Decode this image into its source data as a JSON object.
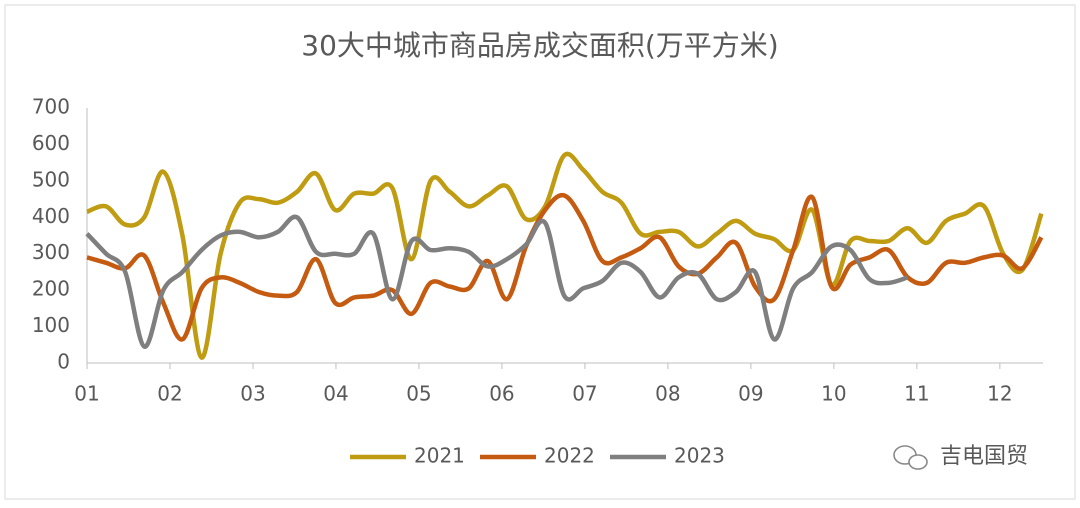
{
  "chart_data": {
    "type": "line",
    "title": "30大中城市商品房成交面积(万平方米)",
    "x": [
      1,
      1.23,
      1.46,
      1.69,
      1.92,
      2.15,
      2.38,
      2.61,
      2.84,
      3.07,
      3.3,
      3.53,
      3.76,
      3.99,
      4.22,
      4.45,
      4.68,
      4.91,
      5.14,
      5.37,
      5.6,
      5.83,
      6.06,
      6.29,
      6.52,
      6.75,
      6.98,
      7.21,
      7.44,
      7.67,
      7.9,
      8.13,
      8.36,
      8.59,
      8.82,
      9.05,
      9.28,
      9.51,
      9.74,
      9.97,
      10.2,
      10.43,
      10.66,
      10.89,
      11.12,
      11.35,
      11.58,
      11.81,
      12.04,
      12.27,
      12.5
    ],
    "series": [
      {
        "name": "2021",
        "color": "#bf9c12",
        "values": [
          415,
          430,
          380,
          400,
          525,
          350,
          15,
          300,
          440,
          450,
          440,
          470,
          520,
          420,
          465,
          465,
          480,
          285,
          500,
          470,
          430,
          460,
          485,
          395,
          430,
          570,
          530,
          470,
          440,
          355,
          360,
          360,
          320,
          355,
          390,
          355,
          340,
          310,
          420,
          215,
          335,
          335,
          335,
          370,
          330,
          390,
          410,
          430,
          300,
          255,
          410
        ]
      },
      {
        "name": "2022",
        "color": "#c55a11",
        "values": [
          290,
          275,
          260,
          295,
          165,
          65,
          205,
          235,
          220,
          195,
          185,
          195,
          285,
          165,
          180,
          185,
          200,
          135,
          220,
          210,
          205,
          280,
          175,
          320,
          420,
          460,
          390,
          280,
          290,
          315,
          345,
          265,
          245,
          290,
          330,
          210,
          175,
          310,
          455,
          210,
          270,
          290,
          310,
          235,
          220,
          275,
          275,
          290,
          295,
          260,
          345
        ]
      },
      {
        "name": "2023",
        "color": "#7f7f7f",
        "values": [
          355,
          300,
          250,
          45,
          200,
          250,
          310,
          350,
          360,
          345,
          360,
          400,
          305,
          300,
          300,
          355,
          175,
          335,
          310,
          315,
          305,
          265,
          285,
          325,
          385,
          185,
          205,
          225,
          275,
          250,
          180,
          235,
          245,
          175,
          195,
          250,
          65,
          205,
          250,
          320,
          310,
          230,
          220,
          235,
          null,
          null,
          null,
          null,
          null,
          null,
          null
        ]
      }
    ],
    "xlim": [
      1,
      12.52
    ],
    "xticks": [
      {
        "value": 1,
        "label": "01"
      },
      {
        "value": 2,
        "label": "02"
      },
      {
        "value": 3,
        "label": "03"
      },
      {
        "value": 4,
        "label": "04"
      },
      {
        "value": 5,
        "label": "05"
      },
      {
        "value": 6,
        "label": "06"
      },
      {
        "value": 7,
        "label": "07"
      },
      {
        "value": 8,
        "label": "08"
      },
      {
        "value": 9,
        "label": "09"
      },
      {
        "value": 10,
        "label": "10"
      },
      {
        "value": 11,
        "label": "11"
      },
      {
        "value": 12,
        "label": "12"
      }
    ],
    "ylim": [
      0,
      700
    ],
    "yticks": [
      0,
      100,
      200,
      300,
      400,
      500,
      600,
      700
    ],
    "grid": false,
    "legend": "bottom",
    "source": "吉电国贸"
  }
}
